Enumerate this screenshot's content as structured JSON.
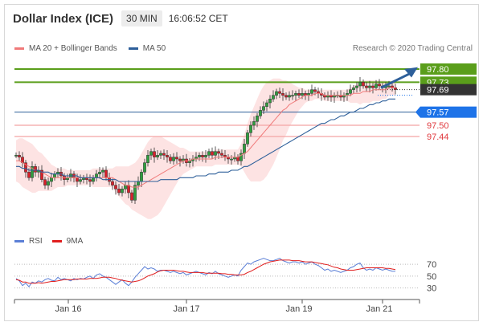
{
  "header": {
    "title": "Dollar Index (ICE)",
    "interval": "30 MIN",
    "time": "16:06:52 CET"
  },
  "legend": {
    "bollinger_label": "MA 20 + Bollinger Bands",
    "ma50_label": "MA 50",
    "credit": "Research © 2020 Trading Central"
  },
  "rsi_legend": {
    "rsi_label": "RSI",
    "ma9_label": "9MA"
  },
  "colors": {
    "green": "#5a9e1b",
    "blue": "#2d5f9a",
    "red": "#e0393e",
    "salmon": "#f4a4a4",
    "ma20": "#f07a7a",
    "band_fill": "#fde3e3",
    "rsi": "#5b7fd6",
    "rsi_ma": "#e01e1e",
    "dark": "#333333"
  },
  "chart_data": {
    "type": "candlestick",
    "x_tick_labels": [
      "Jan 16",
      "Jan 17",
      "Jan 19",
      "Jan 21"
    ],
    "y_range": [
      96.96,
      97.86
    ],
    "levels": [
      {
        "value": 97.8,
        "label": "97.80",
        "kind": "resistance"
      },
      {
        "value": 97.73,
        "label": "97.73",
        "kind": "resistance"
      },
      {
        "value": 97.69,
        "label": "97.69",
        "kind": "last"
      },
      {
        "value": 97.57,
        "label": "97.57",
        "kind": "pivot"
      },
      {
        "value": 97.5,
        "label": "97.50",
        "kind": "support"
      },
      {
        "value": 97.44,
        "label": "97.44",
        "kind": "support"
      }
    ],
    "close": [
      97.34,
      97.33,
      97.3,
      97.25,
      97.22,
      97.28,
      97.25,
      97.26,
      97.21,
      97.18,
      97.2,
      97.22,
      97.24,
      97.25,
      97.23,
      97.21,
      97.22,
      97.24,
      97.22,
      97.2,
      97.21,
      97.22,
      97.21,
      97.2,
      97.22,
      97.24,
      97.25,
      97.26,
      97.22,
      97.2,
      97.18,
      97.16,
      97.14,
      97.16,
      97.18,
      97.14,
      97.1,
      97.18,
      97.2,
      97.25,
      97.3,
      97.34,
      97.36,
      97.33,
      97.34,
      97.35,
      97.34,
      97.33,
      97.31,
      97.33,
      97.32,
      97.31,
      97.32,
      97.3,
      97.31,
      97.32,
      97.33,
      97.34,
      97.33,
      97.34,
      97.36,
      97.34,
      97.36,
      97.35,
      97.34,
      97.33,
      97.32,
      97.32,
      97.33,
      97.31,
      97.35,
      97.4,
      97.46,
      97.5,
      97.52,
      97.55,
      97.58,
      97.6,
      97.62,
      97.64,
      97.66,
      97.68,
      97.67,
      97.66,
      97.65,
      97.66,
      97.66,
      97.67,
      97.66,
      97.67,
      97.66,
      97.67,
      97.69,
      97.68,
      97.67,
      97.66,
      97.65,
      97.66,
      97.65,
      97.66,
      97.66,
      97.65,
      97.66,
      97.67,
      97.69,
      97.7,
      97.71,
      97.73,
      97.71,
      97.7,
      97.71,
      97.7,
      97.72,
      97.71,
      97.7,
      97.71,
      97.71,
      97.7,
      97.69
    ],
    "ma20": [
      97.31,
      97.31,
      97.3,
      97.29,
      97.28,
      97.27,
      97.26,
      97.26,
      97.25,
      97.24,
      97.23,
      97.22,
      97.22,
      97.22,
      97.22,
      97.22,
      97.22,
      97.22,
      97.22,
      97.22,
      97.22,
      97.22,
      97.22,
      97.22,
      97.22,
      97.22,
      97.22,
      97.22,
      97.22,
      97.22,
      97.22,
      97.21,
      97.2,
      97.19,
      97.18,
      97.18,
      97.17,
      97.17,
      97.17,
      97.18,
      97.19,
      97.2,
      97.21,
      97.22,
      97.23,
      97.24,
      97.25,
      97.26,
      97.27,
      97.28,
      97.29,
      97.3,
      97.31,
      97.31,
      97.31,
      97.32,
      97.32,
      97.32,
      97.32,
      97.32,
      97.32,
      97.32,
      97.33,
      97.33,
      97.33,
      97.33,
      97.33,
      97.33,
      97.33,
      97.33,
      97.34,
      97.35,
      97.36,
      97.38,
      97.4,
      97.42,
      97.44,
      97.46,
      97.48,
      97.5,
      97.52,
      97.54,
      97.56,
      97.58,
      97.59,
      97.61,
      97.62,
      97.63,
      97.64,
      97.65,
      97.66,
      97.66,
      97.66,
      97.67,
      97.67,
      97.67,
      97.66,
      97.66,
      97.66,
      97.66,
      97.66,
      97.66,
      97.66,
      97.66,
      97.66,
      97.67,
      97.67,
      97.67,
      97.68,
      97.68,
      97.68,
      97.69,
      97.69,
      97.69,
      97.69,
      97.69,
      97.7,
      97.7,
      97.7
    ],
    "bb_upper": [
      97.42,
      97.43,
      97.43,
      97.42,
      97.41,
      97.4,
      97.38,
      97.36,
      97.35,
      97.33,
      97.31,
      97.29,
      97.28,
      97.27,
      97.27,
      97.27,
      97.26,
      97.26,
      97.26,
      97.26,
      97.26,
      97.26,
      97.26,
      97.26,
      97.27,
      97.27,
      97.27,
      97.27,
      97.27,
      97.27,
      97.27,
      97.28,
      97.28,
      97.28,
      97.28,
      97.28,
      97.29,
      97.3,
      97.32,
      97.35,
      97.38,
      97.41,
      97.43,
      97.44,
      97.44,
      97.44,
      97.43,
      97.42,
      97.41,
      97.4,
      97.39,
      97.38,
      97.38,
      97.37,
      97.36,
      97.36,
      97.36,
      97.36,
      97.36,
      97.36,
      97.36,
      97.36,
      97.37,
      97.37,
      97.37,
      97.37,
      97.37,
      97.37,
      97.37,
      97.37,
      97.4,
      97.45,
      97.51,
      97.56,
      97.6,
      97.64,
      97.68,
      97.71,
      97.73,
      97.74,
      97.75,
      97.75,
      97.75,
      97.74,
      97.74,
      97.73,
      97.72,
      97.71,
      97.7,
      97.7,
      97.69,
      97.69,
      97.69,
      97.69,
      97.69,
      97.69,
      97.69,
      97.69,
      97.69,
      97.69,
      97.69,
      97.69,
      97.69,
      97.69,
      97.7,
      97.71,
      97.72,
      97.73,
      97.74,
      97.74,
      97.74,
      97.74,
      97.74,
      97.74,
      97.74,
      97.74,
      97.73,
      97.73,
      97.73
    ],
    "bb_lower": [
      97.2,
      97.19,
      97.17,
      97.16,
      97.15,
      97.14,
      97.14,
      97.15,
      97.15,
      97.15,
      97.15,
      97.15,
      97.16,
      97.17,
      97.17,
      97.17,
      97.18,
      97.18,
      97.18,
      97.18,
      97.18,
      97.18,
      97.18,
      97.18,
      97.17,
      97.17,
      97.17,
      97.17,
      97.17,
      97.17,
      97.17,
      97.14,
      97.12,
      97.1,
      97.08,
      97.07,
      97.05,
      97.04,
      97.03,
      97.02,
      97.01,
      97.0,
      97.0,
      97.01,
      97.02,
      97.04,
      97.07,
      97.1,
      97.13,
      97.16,
      97.19,
      97.22,
      97.24,
      97.25,
      97.26,
      97.27,
      97.28,
      97.28,
      97.28,
      97.28,
      97.28,
      97.28,
      97.29,
      97.29,
      97.29,
      97.29,
      97.29,
      97.29,
      97.29,
      97.29,
      97.28,
      97.25,
      97.22,
      97.2,
      97.2,
      97.2,
      97.2,
      97.21,
      97.23,
      97.26,
      97.29,
      97.33,
      97.37,
      97.42,
      97.45,
      97.49,
      97.52,
      97.55,
      97.58,
      97.6,
      97.62,
      97.63,
      97.63,
      97.64,
      97.64,
      97.64,
      97.63,
      97.63,
      97.63,
      97.63,
      97.63,
      97.63,
      97.63,
      97.63,
      97.62,
      97.62,
      97.62,
      97.61,
      97.62,
      97.62,
      97.62,
      97.63,
      97.63,
      97.63,
      97.64,
      97.64,
      97.66,
      97.66,
      97.66
    ],
    "ma50": [
      97.28,
      97.28,
      97.27,
      97.27,
      97.26,
      97.26,
      97.26,
      97.26,
      97.25,
      97.25,
      97.25,
      97.24,
      97.24,
      97.24,
      97.24,
      97.23,
      97.23,
      97.23,
      97.23,
      97.23,
      97.22,
      97.22,
      97.22,
      97.22,
      97.22,
      97.22,
      97.22,
      97.21,
      97.21,
      97.21,
      97.21,
      97.21,
      97.2,
      97.2,
      97.2,
      97.2,
      97.2,
      97.2,
      97.2,
      97.2,
      97.2,
      97.2,
      97.2,
      97.2,
      97.2,
      97.21,
      97.21,
      97.21,
      97.21,
      97.21,
      97.21,
      97.22,
      97.22,
      97.22,
      97.22,
      97.22,
      97.23,
      97.23,
      97.23,
      97.23,
      97.24,
      97.24,
      97.24,
      97.25,
      97.25,
      97.25,
      97.25,
      97.26,
      97.26,
      97.26,
      97.27,
      97.28,
      97.28,
      97.29,
      97.3,
      97.31,
      97.32,
      97.33,
      97.34,
      97.35,
      97.36,
      97.37,
      97.38,
      97.39,
      97.4,
      97.41,
      97.42,
      97.43,
      97.44,
      97.45,
      97.46,
      97.47,
      97.48,
      97.49,
      97.5,
      97.51,
      97.51,
      97.52,
      97.53,
      97.53,
      97.54,
      97.55,
      97.55,
      97.56,
      97.57,
      97.57,
      97.58,
      97.59,
      97.59,
      97.6,
      97.61,
      97.61,
      97.62,
      97.62,
      97.63,
      97.63,
      97.64,
      97.64,
      97.64
    ],
    "rsi": {
      "y_ticks": [
        70,
        50,
        30
      ],
      "y_range": [
        20,
        85
      ],
      "rsi": [
        46,
        42,
        34,
        38,
        32,
        40,
        38,
        42,
        40,
        44,
        46,
        43,
        42,
        48,
        44,
        46,
        44,
        42,
        46,
        44,
        46,
        45,
        48,
        50,
        46,
        52,
        54,
        50,
        48,
        44,
        40,
        36,
        40,
        44,
        38,
        34,
        40,
        48,
        54,
        60,
        66,
        62,
        64,
        62,
        58,
        60,
        60,
        58,
        56,
        58,
        56,
        54,
        56,
        52,
        54,
        56,
        58,
        56,
        54,
        52,
        56,
        54,
        58,
        54,
        52,
        50,
        48,
        50,
        52,
        50,
        60,
        66,
        72,
        70,
        74,
        76,
        78,
        80,
        78,
        76,
        76,
        78,
        80,
        76,
        74,
        72,
        74,
        74,
        72,
        74,
        70,
        72,
        74,
        70,
        68,
        64,
        60,
        62,
        58,
        60,
        58,
        56,
        58,
        60,
        64,
        66,
        70,
        72,
        64,
        60,
        62,
        60,
        64,
        62,
        60,
        62,
        60,
        58,
        58
      ],
      "ma9": [
        44,
        43,
        40,
        40,
        38,
        38,
        38,
        39,
        38,
        39,
        40,
        41,
        41,
        42,
        43,
        44,
        44,
        44,
        44,
        45,
        45,
        45,
        45,
        46,
        46,
        46,
        47,
        48,
        48,
        48,
        47,
        46,
        44,
        43,
        42,
        41,
        40,
        41,
        42,
        44,
        47,
        50,
        52,
        54,
        57,
        59,
        60,
        60,
        60,
        60,
        59,
        58,
        58,
        57,
        56,
        56,
        56,
        56,
        56,
        55,
        55,
        55,
        55,
        55,
        54,
        54,
        53,
        53,
        52,
        52,
        52,
        53,
        56,
        58,
        61,
        64,
        67,
        70,
        72,
        74,
        75,
        76,
        77,
        77,
        77,
        77,
        76,
        76,
        76,
        75,
        74,
        74,
        74,
        73,
        72,
        71,
        70,
        69,
        67,
        65,
        64,
        62,
        61,
        60,
        60,
        60,
        61,
        62,
        63,
        64,
        64,
        64,
        64,
        64,
        64,
        63,
        63,
        62,
        61
      ]
    }
  }
}
